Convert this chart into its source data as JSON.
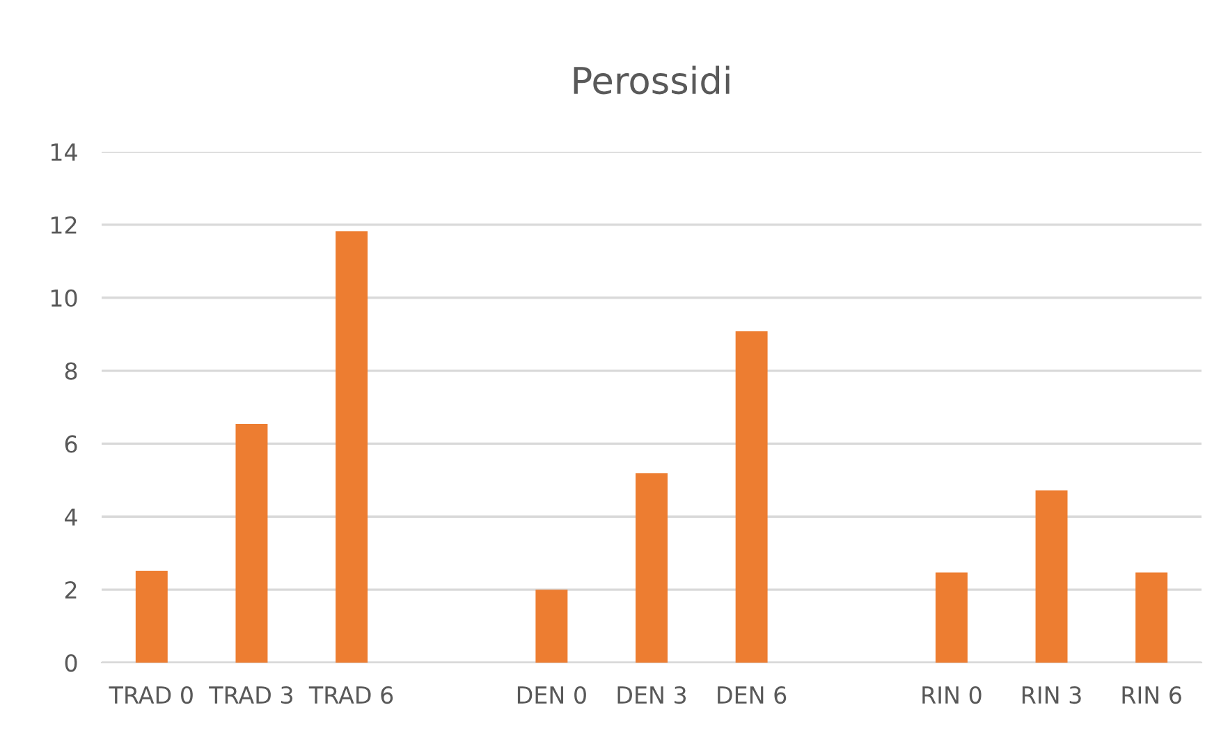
{
  "chart_data": {
    "type": "bar",
    "title": "Perossidi",
    "categories": [
      "TRAD 0",
      "TRAD 3",
      "TRAD 6",
      null,
      "DEN 0",
      "DEN 3",
      "DEN 6",
      null,
      "RIN 0",
      "RIN 3",
      "RIN 6"
    ],
    "values": [
      2.52,
      6.54,
      11.82,
      null,
      2.0,
      5.19,
      9.08,
      null,
      2.47,
      4.72,
      2.47
    ],
    "color": "#ed7d31",
    "ylim": [
      0,
      14
    ],
    "yticks": [
      0,
      2,
      4,
      6,
      8,
      10,
      12,
      14
    ],
    "grid": "y",
    "legend": false
  }
}
